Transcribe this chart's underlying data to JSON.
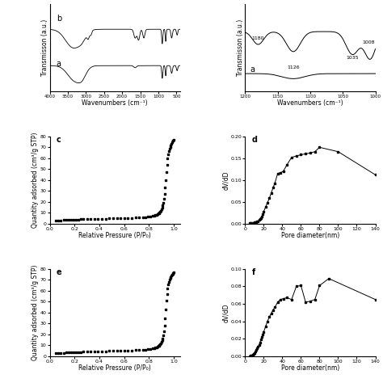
{
  "panel_a": {
    "xlabel": "Wavenumbers (cm⁻¹)",
    "ylabel": "Transmisson (a.u.)"
  },
  "panel_b": {
    "xlabel": "Wavenumbers (cm⁻¹)",
    "ylabel": "Transmisson (a.u.)"
  },
  "panel_c": {
    "label": "c",
    "xlabel": "Relative Pressure (P/P₀)",
    "ylabel": "Quantity adsorbed (cm³/g STP)",
    "xlim": [
      0.0,
      1.05
    ],
    "ylim": [
      0,
      80
    ],
    "xticks": [
      0.0,
      0.2,
      0.4,
      0.6,
      0.8,
      1.0
    ],
    "yticks": [
      0,
      10,
      20,
      30,
      40,
      50,
      60,
      70,
      80
    ]
  },
  "panel_d": {
    "label": "d",
    "xlabel": "Pore diameter(nm)",
    "ylabel": "dV/dD",
    "xlim": [
      0,
      140
    ],
    "ylim": [
      0.0,
      0.2
    ],
    "xticks": [
      0,
      20,
      40,
      60,
      80,
      100,
      120,
      140
    ],
    "yticks": [
      0.0,
      0.05,
      0.1,
      0.15,
      0.2
    ],
    "x": [
      5,
      6,
      7,
      8,
      9,
      10,
      11,
      12,
      13,
      14,
      15,
      16,
      17,
      18,
      19,
      20,
      22,
      24,
      26,
      28,
      30,
      32,
      35,
      38,
      41,
      45,
      50,
      55,
      60,
      65,
      70,
      75,
      80,
      100,
      140
    ],
    "y": [
      0.001,
      0.001,
      0.001,
      0.002,
      0.002,
      0.003,
      0.003,
      0.004,
      0.005,
      0.006,
      0.008,
      0.01,
      0.013,
      0.017,
      0.022,
      0.028,
      0.038,
      0.048,
      0.058,
      0.07,
      0.082,
      0.093,
      0.115,
      0.117,
      0.12,
      0.135,
      0.152,
      0.155,
      0.158,
      0.16,
      0.162,
      0.165,
      0.175,
      0.165,
      0.112
    ]
  },
  "panel_e": {
    "label": "e",
    "xlabel": "Relative Pressure (P/P₀)",
    "ylabel": "Quantity adsorbed (cm³/g STP)",
    "xlim": [
      0.0,
      1.05
    ],
    "ylim": [
      0,
      80
    ],
    "xticks": [
      0.0,
      0.2,
      0.4,
      0.6,
      0.8,
      1.0
    ],
    "yticks": [
      0,
      10,
      20,
      30,
      40,
      50,
      60,
      70,
      80
    ]
  },
  "panel_f": {
    "label": "f",
    "xlabel": "Pore diameter(nm)",
    "ylabel": "dV/dD",
    "xlim": [
      0,
      140
    ],
    "ylim": [
      0.0,
      0.1
    ],
    "xticks": [
      0,
      20,
      40,
      60,
      80,
      100,
      120,
      140
    ],
    "yticks": [
      0.0,
      0.02,
      0.04,
      0.06,
      0.08,
      0.1
    ],
    "x": [
      5,
      6,
      7,
      8,
      9,
      10,
      11,
      12,
      13,
      14,
      15,
      16,
      17,
      18,
      19,
      20,
      22,
      24,
      26,
      28,
      30,
      32,
      35,
      38,
      41,
      45,
      50,
      55,
      60,
      65,
      70,
      75,
      80,
      90,
      140
    ],
    "y": [
      0.0,
      0.001,
      0.001,
      0.002,
      0.003,
      0.004,
      0.005,
      0.007,
      0.009,
      0.011,
      0.013,
      0.016,
      0.019,
      0.022,
      0.025,
      0.028,
      0.034,
      0.04,
      0.045,
      0.049,
      0.053,
      0.056,
      0.062,
      0.065,
      0.066,
      0.067,
      0.065,
      0.08,
      0.081,
      0.062,
      0.063,
      0.065,
      0.081,
      0.089,
      0.065
    ]
  }
}
